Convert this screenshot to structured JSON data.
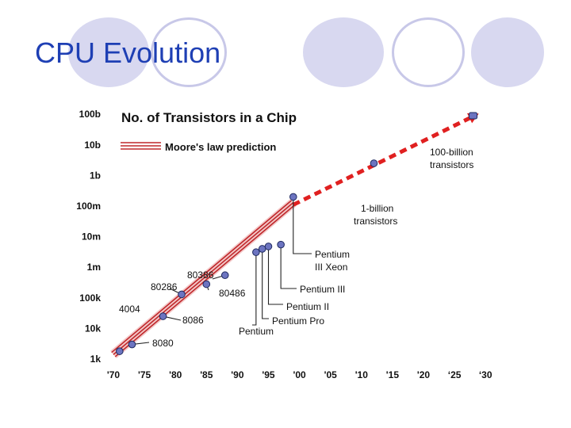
{
  "slide": {
    "title": "CPU Evolution",
    "circle_fill_color": "#d8d8f0",
    "circle_ring_color": "#c8c8e8"
  },
  "chart_data": {
    "type": "scatter",
    "title": "No. of Transistors in a Chip",
    "legend": "Moore's law prediction",
    "legend_position": "top-left",
    "grid": false,
    "y_scale": "log",
    "x_tick_labels": [
      "'70",
      "'75",
      "'80",
      "'85",
      "'90",
      "'95",
      "'00",
      "'05",
      "'10",
      "'15",
      "'20",
      "‘25",
      "‘30"
    ],
    "x_tick_values": [
      1970,
      1975,
      1980,
      1985,
      1990,
      1995,
      2000,
      2005,
      2010,
      2015,
      2020,
      2025,
      2030
    ],
    "y_tick_labels": [
      "1k",
      "10k",
      "100k",
      "1m",
      "10m",
      "100m",
      "1b",
      "10b",
      "100b"
    ],
    "y_tick_values": [
      1000,
      10000,
      100000,
      1000000,
      10000000,
      100000000,
      1000000000,
      10000000000,
      100000000000
    ],
    "xlim": [
      1970,
      2030
    ],
    "ylim": [
      1000,
      100000000000
    ],
    "colors": {
      "trend_line": "#c0282c",
      "prediction_line": "#e02020",
      "point_fill": "#6c74c0",
      "point_stroke": "#1e2a60",
      "text": "#111111"
    },
    "trend_line": {
      "x": [
        1970,
        1999
      ],
      "y": [
        1400,
        130000000
      ]
    },
    "prediction_line": {
      "x": [
        1999,
        2028
      ],
      "y": [
        110000000,
        85000000000
      ]
    },
    "points": [
      {
        "x": 1971,
        "y": 1800,
        "label": ""
      },
      {
        "x": 1973,
        "y": 3000,
        "label": ""
      },
      {
        "x": 1978,
        "y": 25000,
        "label": ""
      },
      {
        "x": 1981,
        "y": 130000,
        "label": ""
      },
      {
        "x": 1985,
        "y": 280000,
        "label": ""
      },
      {
        "x": 1988,
        "y": 550000,
        "label": ""
      },
      {
        "x": 1993,
        "y": 3100000,
        "label": ""
      },
      {
        "x": 1994,
        "y": 4000000,
        "label": ""
      },
      {
        "x": 1995,
        "y": 4800000,
        "label": ""
      },
      {
        "x": 1997,
        "y": 5500000,
        "label": ""
      },
      {
        "x": 1999,
        "y": 200000000,
        "label": ""
      },
      {
        "x": 2012,
        "y": 2500000000,
        "label": ""
      },
      {
        "x": 2028,
        "y": 90000000000,
        "label": ""
      }
    ],
    "annotations": [
      "4004",
      "8080",
      "8086",
      "80286",
      "80386",
      "80486",
      "Pentium",
      "Pentium Pro",
      "Pentium II",
      "Pentium III",
      "Pentium",
      "III Xeon",
      "1-billion",
      "transistors",
      "100-billion",
      "transistors"
    ]
  }
}
